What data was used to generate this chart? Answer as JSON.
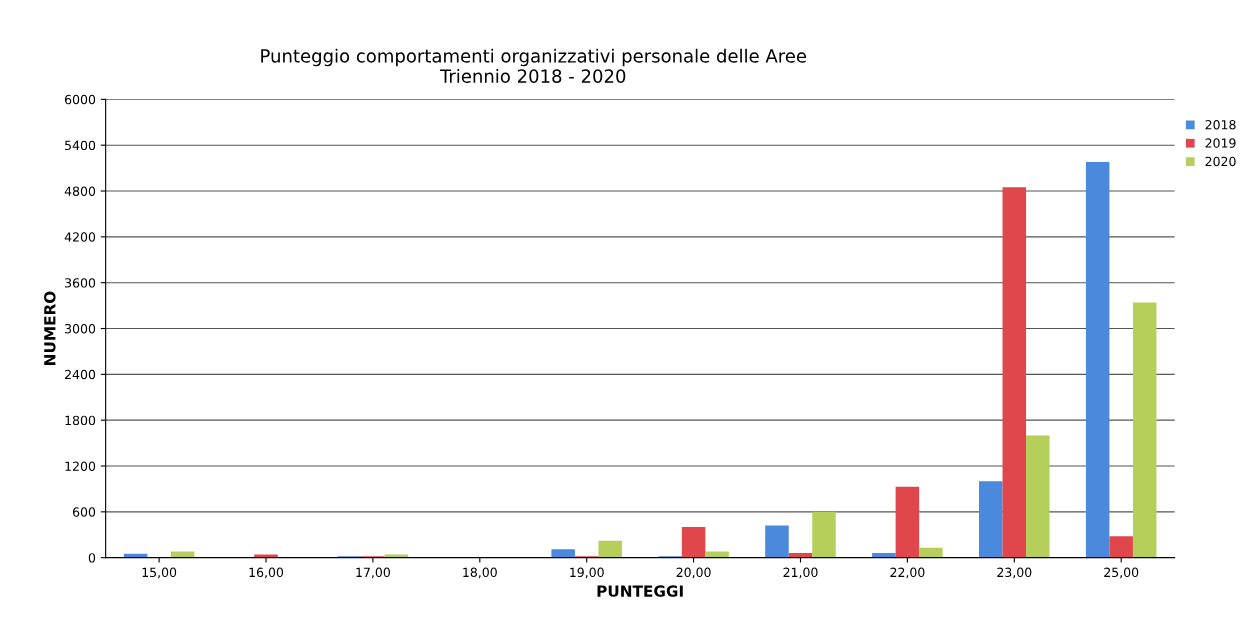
{
  "chart_data": {
    "type": "bar",
    "title": "Punteggio comportamenti organizzativi personale delle Aree\nTriennio 2018 - 2020",
    "xlabel": "PUNTEGGI",
    "ylabel": "NUMERO",
    "categories": [
      "15,00",
      "16,00",
      "17,00",
      "18,00",
      "19,00",
      "20,00",
      "21,00",
      "22,00",
      "23,00",
      "25,00"
    ],
    "series": [
      {
        "name": "2018",
        "color": "#4a89dc",
        "values": [
          50,
          0,
          20,
          0,
          110,
          20,
          420,
          60,
          1000,
          5180
        ]
      },
      {
        "name": "2019",
        "color": "#e0474c",
        "values": [
          0,
          40,
          20,
          0,
          20,
          400,
          60,
          930,
          4850,
          280
        ]
      },
      {
        "name": "2020",
        "color": "#b5cf5a",
        "values": [
          80,
          0,
          40,
          0,
          220,
          80,
          600,
          130,
          1600,
          3340
        ]
      }
    ],
    "ylim": [
      0,
      6000
    ],
    "yticks": [
      0,
      600,
      1200,
      1800,
      2400,
      3000,
      3600,
      4200,
      4800,
      5400,
      6000
    ],
    "grid": "y",
    "legend": "right"
  }
}
